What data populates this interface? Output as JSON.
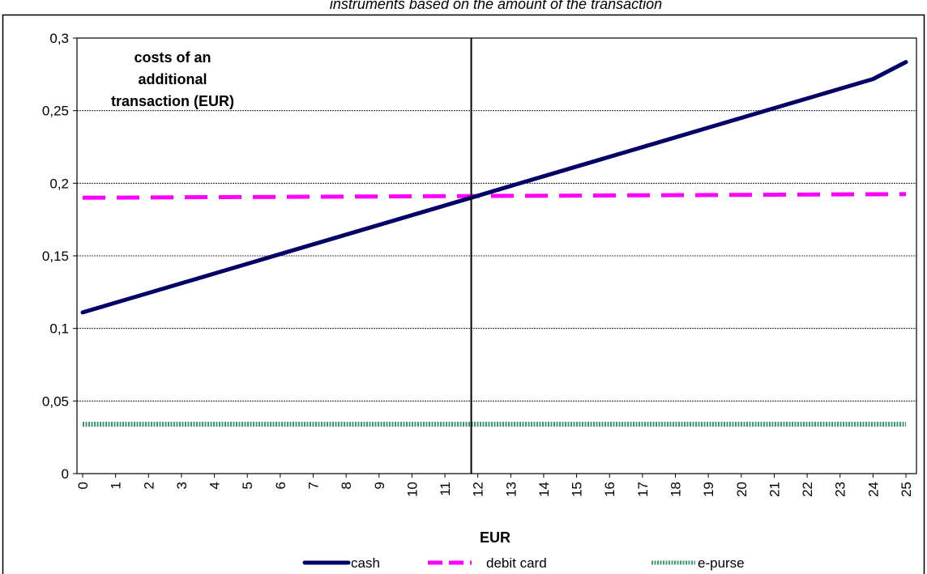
{
  "chart_data": {
    "type": "line",
    "title": "instruments based on the amount of the transaction",
    "xlabel": "EUR",
    "ylabel": "",
    "categories": [
      "0",
      "1",
      "2",
      "3",
      "4",
      "5",
      "6",
      "7",
      "8",
      "9",
      "10",
      "11",
      "12",
      "13",
      "14",
      "15",
      "16",
      "17",
      "18",
      "19",
      "20",
      "21",
      "22",
      "23",
      "24",
      "25"
    ],
    "ylim": [
      0,
      0.3
    ],
    "yticks": [
      "0",
      "0,05",
      "0,1",
      "0,15",
      "0,2",
      "0,25",
      "0,3"
    ],
    "grid": "horizontal-dashed",
    "legend_position": "bottom",
    "annotation": {
      "lines": [
        "costs of an",
        "additional",
        "transaction (EUR)"
      ],
      "vertical_line_x": 11.8
    },
    "series": [
      {
        "name": "cash",
        "style": "solid",
        "color": "#000066",
        "values": [
          0.111,
          0.1177,
          0.1244,
          0.1311,
          0.1378,
          0.1445,
          0.1512,
          0.1579,
          0.1646,
          0.1713,
          0.178,
          0.1847,
          0.1914,
          0.1981,
          0.2048,
          0.2115,
          0.2182,
          0.2249,
          0.2316,
          0.2383,
          0.245,
          0.2517,
          0.2584,
          0.2651,
          0.2718,
          0.2835
        ]
      },
      {
        "name": "debit card",
        "style": "dashed",
        "color": "#FF00FF",
        "values": [
          0.19,
          0.1901,
          0.1902,
          0.1903,
          0.1904,
          0.1905,
          0.1906,
          0.1907,
          0.1908,
          0.1909,
          0.191,
          0.1911,
          0.1912,
          0.1913,
          0.1914,
          0.1915,
          0.1916,
          0.1917,
          0.1918,
          0.1919,
          0.192,
          0.1921,
          0.1922,
          0.1923,
          0.1924,
          0.1925
        ]
      },
      {
        "name": "e-purse",
        "style": "dotted-thick",
        "color": "#3D9970",
        "values": [
          0.034,
          0.034,
          0.034,
          0.034,
          0.034,
          0.034,
          0.034,
          0.034,
          0.034,
          0.034,
          0.034,
          0.034,
          0.034,
          0.034,
          0.034,
          0.034,
          0.034,
          0.034,
          0.034,
          0.034,
          0.034,
          0.034,
          0.034,
          0.034,
          0.034,
          0.034
        ]
      }
    ]
  }
}
